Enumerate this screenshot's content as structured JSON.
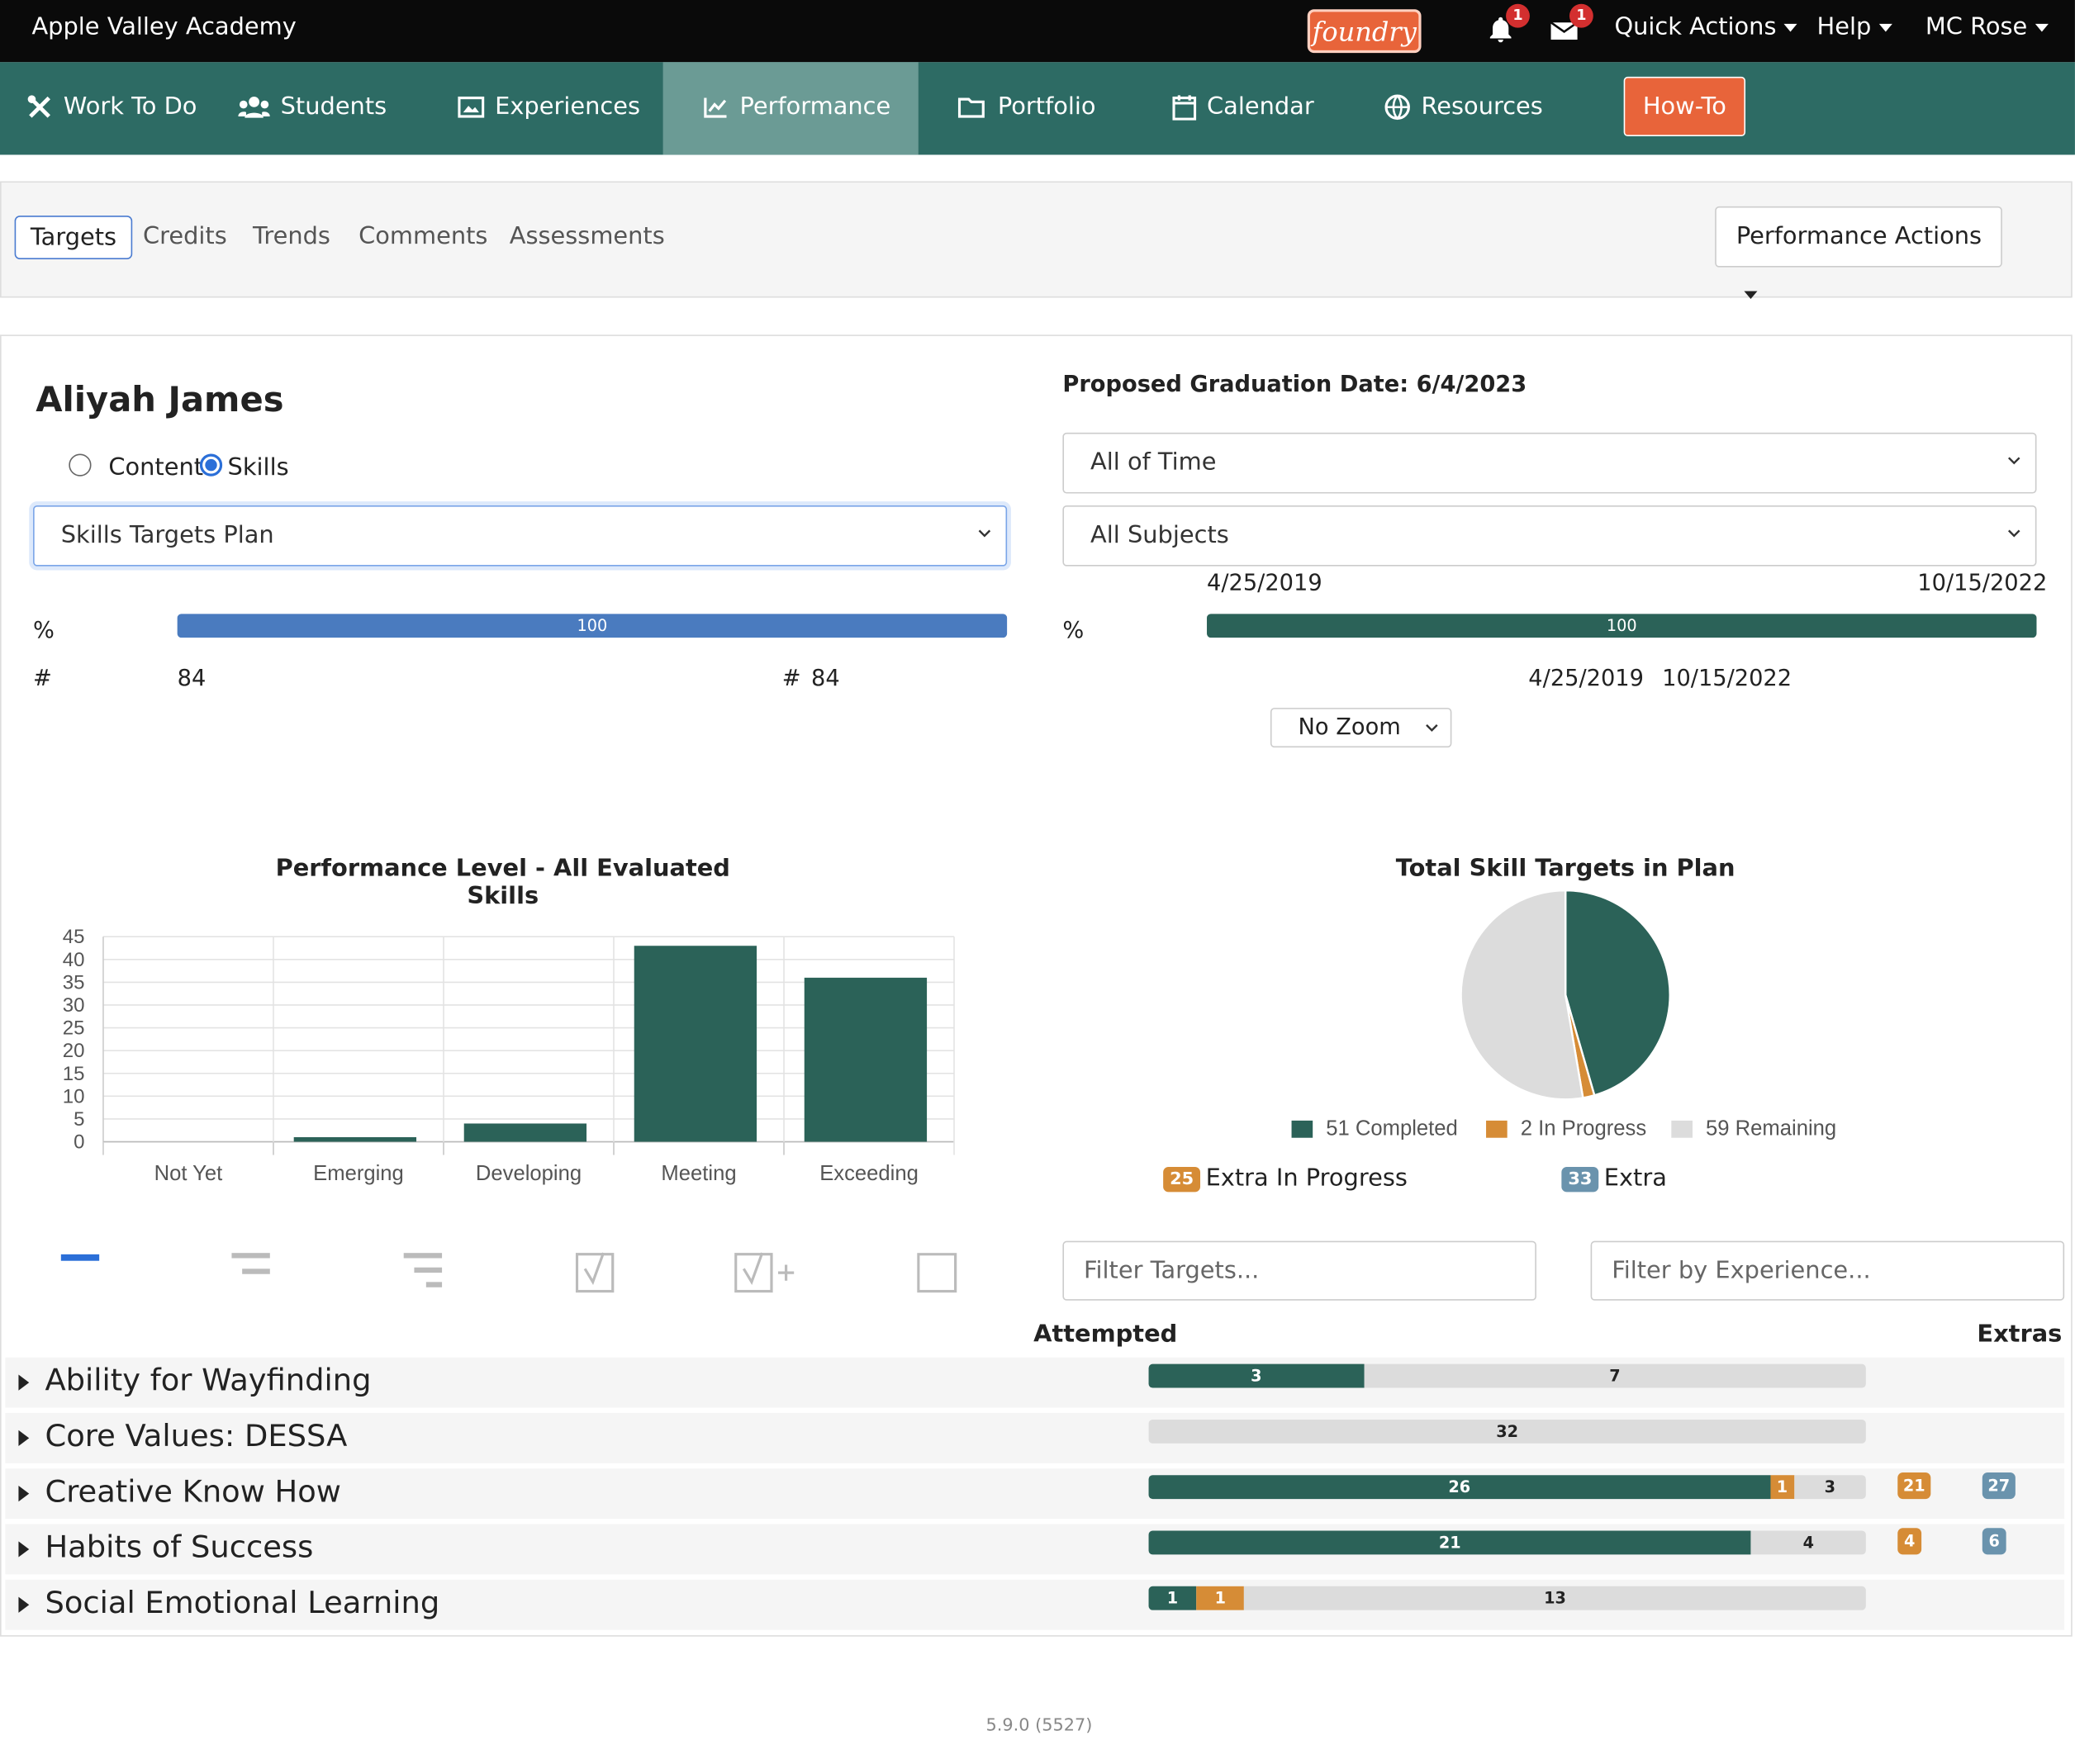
{
  "topbar": {
    "school": "Apple Valley Academy",
    "logo_text": "foundry",
    "notifications_count": "1",
    "messages_count": "1",
    "quick_actions": "Quick Actions",
    "help": "Help",
    "user": "MC Rose"
  },
  "nav": {
    "items": [
      {
        "label": "Work To Do",
        "icon": "tools-icon"
      },
      {
        "label": "Students",
        "icon": "users-icon"
      },
      {
        "label": "Experiences",
        "icon": "image-icon"
      },
      {
        "label": "Performance",
        "icon": "chart-line-icon"
      },
      {
        "label": "Portfolio",
        "icon": "folder-icon"
      },
      {
        "label": "Calendar",
        "icon": "calendar-icon"
      },
      {
        "label": "Resources",
        "icon": "globe-icon"
      }
    ],
    "howto": "How-To",
    "active": "Performance"
  },
  "tabs": {
    "items": [
      "Targets",
      "Credits",
      "Trends",
      "Comments",
      "Assessments"
    ],
    "active": "Targets",
    "actions": "Performance Actions"
  },
  "student": {
    "name": "Aliyah James",
    "radio_content": "Content",
    "radio_skills": "Skills",
    "selected_mode": "Skills",
    "plan_select": "Skills Targets Plan"
  },
  "right_panel": {
    "grad_label": "Proposed Graduation Date:",
    "grad_date": "6/4/2023",
    "time_select": "All of Time",
    "subject_select": "All Subjects",
    "date_start": "4/25/2019",
    "date_end": "10/15/2022",
    "date_start2": "4/25/2019",
    "date_end2": "10/15/2022",
    "zoom": "No Zoom"
  },
  "progress": {
    "left_percent_label": "%",
    "left_percent_value": "100",
    "left_count_label": "#",
    "left_count_value": "84",
    "left_count_label2": "#",
    "left_count_value2": "84",
    "right_percent_label": "%",
    "right_percent_value": "100"
  },
  "chart_data": [
    {
      "type": "bar",
      "title": "Performance Level - All Evaluated Skills",
      "categories": [
        "Not Yet",
        "Emerging",
        "Developing",
        "Meeting",
        "Exceeding"
      ],
      "values": [
        0,
        1,
        4,
        43,
        36
      ],
      "ylim": [
        0,
        45
      ],
      "yticks": [
        0,
        5,
        10,
        15,
        20,
        25,
        30,
        35,
        40,
        45
      ],
      "xlabel": "",
      "ylabel": "",
      "grid": true,
      "color": "#2b6258"
    },
    {
      "type": "pie",
      "title": "Total Skill Targets in Plan",
      "series": [
        {
          "name": "Completed",
          "value": 51,
          "color": "#2b6258"
        },
        {
          "name": "In Progress",
          "value": 2,
          "color": "#d68c36"
        },
        {
          "name": "Remaining",
          "value": 59,
          "color": "#dcdcdc"
        }
      ],
      "legend_position": "bottom"
    }
  ],
  "pie_legend": [
    {
      "count": "51",
      "text": "Completed",
      "color": "#2b6258"
    },
    {
      "count": "2",
      "text": "In Progress",
      "color": "#d68c36"
    },
    {
      "count": "59",
      "text": "Remaining",
      "color": "#dcdcdc"
    }
  ],
  "extras_legend": {
    "extra_in_progress_count": "25",
    "extra_in_progress_label": "Extra In Progress",
    "extra_count": "33",
    "extra_label": "Extra"
  },
  "filters": {
    "targets_placeholder": "Filter Targets...",
    "experience_placeholder": "Filter by Experience..."
  },
  "columns": {
    "attempted": "Attempted",
    "extras": "Extras"
  },
  "targets": [
    {
      "label": "Ability for Wayfinding",
      "completed": 3,
      "in_progress": 0,
      "remaining": 7,
      "extra_in_progress": "",
      "extra": ""
    },
    {
      "label": "Core Values: DESSA",
      "completed": 0,
      "in_progress": 0,
      "remaining": 32,
      "extra_in_progress": "",
      "extra": ""
    },
    {
      "label": "Creative Know How",
      "completed": 26,
      "in_progress": 1,
      "remaining": 3,
      "extra_in_progress": "21",
      "extra": "27"
    },
    {
      "label": "Habits of Success",
      "completed": 21,
      "in_progress": 0,
      "remaining": 4,
      "extra_in_progress": "4",
      "extra": "6"
    },
    {
      "label": "Social Emotional Learning",
      "completed": 1,
      "in_progress": 1,
      "remaining": 13,
      "extra_in_progress": "",
      "extra": ""
    }
  ],
  "footer": {
    "version": "5.9.0 (5527)"
  },
  "colors": {
    "teal": "#2d6b64",
    "dark_teal": "#2b6258",
    "orange": "#d68c36",
    "blue_bar": "#4a7bbf",
    "gray": "#dcdcdc",
    "extra_blue": "#6a93ad",
    "accent_orange": "#e8643a"
  }
}
